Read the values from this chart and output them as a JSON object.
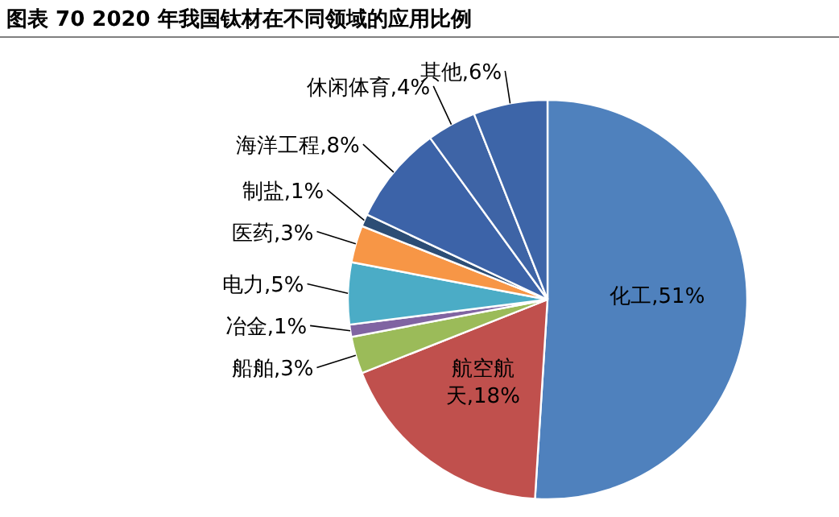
{
  "chart_data": {
    "type": "pie",
    "title": "图表 70  2020 年我国钛材在不同领域的应用比例",
    "categories": [
      "化工",
      "航空航天",
      "船舶",
      "冶金",
      "电力",
      "医药",
      "制盐",
      "海洋工程",
      "休闲体育",
      "其他"
    ],
    "values": [
      51,
      18,
      3,
      1,
      5,
      3,
      1,
      8,
      4,
      6
    ],
    "colors": [
      "#4f81bd",
      "#c0504d",
      "#9bbb59",
      "#8064a2",
      "#4bacc6",
      "#f79646",
      "#2c4d75",
      "#3c63a8",
      "#3e64a6",
      "#3d65a8"
    ],
    "value_labels": [
      ",51%",
      ",18%",
      ",3%",
      ",1%",
      ",5%",
      ",3%",
      ",1%",
      ",8%",
      ",4%",
      ",6%"
    ]
  }
}
